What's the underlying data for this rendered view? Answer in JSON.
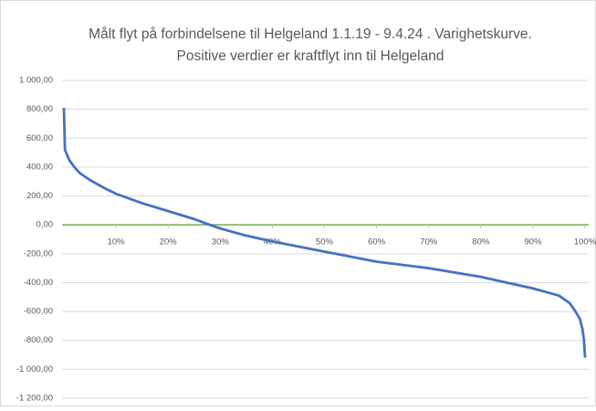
{
  "chart_data": {
    "type": "line",
    "title": [
      "Målt flyt på forbindelsene til Helgeland 1.1.19 - 9.4.24 . Varighetskurve.",
      "Positive verdier er kraftflyt inn til Helgeland"
    ],
    "x": [
      0,
      0.2,
      1,
      2,
      3,
      5,
      8,
      10,
      15,
      20,
      25,
      28,
      30,
      35,
      40,
      50,
      60,
      70,
      80,
      85,
      90,
      95,
      97,
      98,
      99,
      99.5,
      99.8,
      100
    ],
    "series": [
      {
        "name": null,
        "color": "#4472c4",
        "values": [
          810,
          520,
          450,
          400,
          360,
          310,
          250,
          215,
          150,
          95,
          40,
          0,
          -25,
          -75,
          -115,
          -185,
          -255,
          -300,
          -360,
          -400,
          -440,
          -490,
          -540,
          -590,
          -650,
          -720,
          -800,
          -920
        ]
      }
    ],
    "xlim": [
      0,
      100
    ],
    "xticks": [
      {
        "value": 10,
        "label": "10%"
      },
      {
        "value": 20,
        "label": "20%"
      },
      {
        "value": 30,
        "label": "30%"
      },
      {
        "value": 40,
        "label": "40%"
      },
      {
        "value": 50,
        "label": "50%"
      },
      {
        "value": 60,
        "label": "60%"
      },
      {
        "value": 70,
        "label": "70%"
      },
      {
        "value": 80,
        "label": "80%"
      },
      {
        "value": 90,
        "label": "90%"
      },
      {
        "value": 100,
        "label": "100%"
      }
    ],
    "ylim": [
      -1200,
      1000
    ],
    "yticks": [
      {
        "value": 1000,
        "label": "1 000,00"
      },
      {
        "value": 800,
        "label": "800,00"
      },
      {
        "value": 600,
        "label": "600,00"
      },
      {
        "value": 400,
        "label": "400,00"
      },
      {
        "value": 200,
        "label": "200,00"
      },
      {
        "value": 0,
        "label": "0,00"
      },
      {
        "value": -200,
        "label": "-200,00"
      },
      {
        "value": -400,
        "label": "-400,00"
      },
      {
        "value": -600,
        "label": "-600,00"
      },
      {
        "value": -800,
        "label": "-800,00"
      },
      {
        "value": -1000,
        "label": "-1 000,00"
      },
      {
        "value": -1200,
        "label": "-1 200,00"
      }
    ],
    "grid": true,
    "zero_line_color": "#70ad47"
  }
}
